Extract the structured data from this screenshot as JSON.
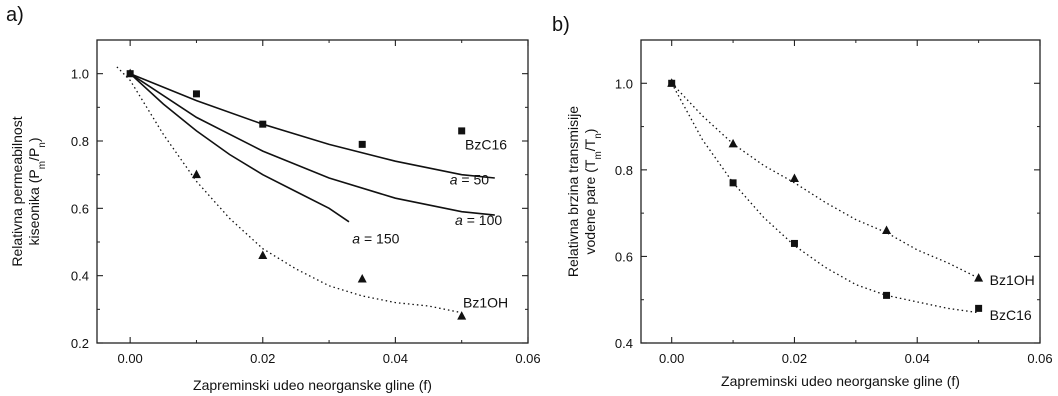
{
  "panels": {
    "a": "a)",
    "b": "b)"
  },
  "chart_data": [
    {
      "type": "scatter",
      "panel": "a)",
      "xlabel": "Zapreminski udeo neorganske gline (f)",
      "ylabel_line1": "Relativna permeabilnost",
      "ylabel_line2": "kiseonika (P",
      "ylabel_sub1": "m",
      "ylabel_mid": "/P",
      "ylabel_sub2": "n",
      "ylabel_end": ")",
      "xlim": [
        -0.005,
        0.06
      ],
      "ylim": [
        0.2,
        1.1
      ],
      "xticks": [
        "0.00",
        "0.02",
        "0.04",
        "0.06"
      ],
      "yticks": [
        "0.2",
        "0.4",
        "0.6",
        "0.8",
        "1.0"
      ],
      "grid": false,
      "series": [
        {
          "name": "BzC16",
          "marker": "square",
          "x": [
            0.0,
            0.01,
            0.02,
            0.035,
            0.05
          ],
          "y": [
            1.0,
            0.94,
            0.85,
            0.79,
            0.83
          ]
        },
        {
          "name": "Bz1OH",
          "marker": "triangle",
          "x": [
            0.0,
            0.01,
            0.02,
            0.035,
            0.05
          ],
          "y": [
            1.0,
            0.7,
            0.46,
            0.39,
            0.28
          ]
        }
      ],
      "curves": [
        {
          "label": "a = 50",
          "style": "solid",
          "x": [
            0.0,
            0.01,
            0.02,
            0.03,
            0.04,
            0.05,
            0.055
          ],
          "y": [
            1.0,
            0.92,
            0.85,
            0.79,
            0.74,
            0.7,
            0.69
          ]
        },
        {
          "label": "a = 100",
          "style": "solid",
          "x": [
            0.0,
            0.01,
            0.02,
            0.03,
            0.04,
            0.05,
            0.055
          ],
          "y": [
            1.0,
            0.87,
            0.77,
            0.69,
            0.63,
            0.59,
            0.58
          ]
        },
        {
          "label": "a = 150",
          "style": "solid",
          "x": [
            0.0,
            0.005,
            0.01,
            0.015,
            0.02,
            0.025,
            0.03,
            0.033
          ],
          "y": [
            1.0,
            0.91,
            0.83,
            0.76,
            0.7,
            0.65,
            0.6,
            0.56
          ]
        },
        {
          "label": "",
          "style": "dotted",
          "x": [
            -0.002,
            0.0,
            0.005,
            0.01,
            0.015,
            0.02,
            0.025,
            0.03,
            0.035,
            0.04,
            0.045,
            0.05
          ],
          "y": [
            1.02,
            0.98,
            0.82,
            0.68,
            0.57,
            0.48,
            0.42,
            0.37,
            0.34,
            0.32,
            0.31,
            0.29
          ]
        }
      ],
      "annotations": [
        {
          "text": "BzC16",
          "italic_prefix": "",
          "x": 0.0505,
          "y": 0.79
        },
        {
          "text": "Bz1OH",
          "italic_prefix": "",
          "x": 0.0502,
          "y": 0.32
        },
        {
          "text": " = 50",
          "italic_prefix": "a",
          "x": 0.0482,
          "y": 0.685
        },
        {
          "text": " = 100",
          "italic_prefix": "a",
          "x": 0.049,
          "y": 0.565
        },
        {
          "text": " = 150",
          "italic_prefix": "a",
          "x": 0.0335,
          "y": 0.51
        }
      ]
    },
    {
      "type": "scatter",
      "panel": "b)",
      "xlabel": "Zapreminski udeo neorganske gline (f)",
      "ylabel_line1": "Relativna brzina transmisije",
      "ylabel_line2": "vodene pare (T",
      "ylabel_sub1": "m",
      "ylabel_mid": "/T",
      "ylabel_sub2": "n",
      "ylabel_end": ")",
      "xlim": [
        -0.005,
        0.06
      ],
      "ylim": [
        0.4,
        1.1
      ],
      "xticks": [
        "0.00",
        "0.02",
        "0.04",
        "0.06"
      ],
      "yticks": [
        "0.4",
        "0.6",
        "0.8",
        "1.0"
      ],
      "grid": false,
      "series": [
        {
          "name": "Bz1OH",
          "marker": "triangle",
          "x": [
            0.0,
            0.01,
            0.02,
            0.035,
            0.05
          ],
          "y": [
            1.0,
            0.86,
            0.78,
            0.66,
            0.55
          ]
        },
        {
          "name": "BzC16",
          "marker": "square",
          "x": [
            0.0,
            0.01,
            0.02,
            0.035,
            0.05
          ],
          "y": [
            1.0,
            0.77,
            0.63,
            0.51,
            0.48
          ]
        }
      ],
      "curves": [
        {
          "label": "",
          "style": "dotted",
          "x": [
            0.0,
            0.005,
            0.01,
            0.015,
            0.02,
            0.025,
            0.03,
            0.035,
            0.04,
            0.045,
            0.05
          ],
          "y": [
            1.0,
            0.925,
            0.86,
            0.81,
            0.77,
            0.725,
            0.685,
            0.655,
            0.615,
            0.585,
            0.55
          ]
        },
        {
          "label": "",
          "style": "dotted",
          "x": [
            0.0,
            0.005,
            0.01,
            0.015,
            0.02,
            0.025,
            0.03,
            0.035,
            0.04,
            0.045,
            0.05
          ],
          "y": [
            1.0,
            0.87,
            0.77,
            0.69,
            0.625,
            0.575,
            0.535,
            0.51,
            0.495,
            0.48,
            0.47
          ]
        }
      ],
      "annotations": [
        {
          "text": "Bz1OH",
          "italic_prefix": "",
          "x": 0.0518,
          "y": 0.545
        },
        {
          "text": "BzC16",
          "italic_prefix": "",
          "x": 0.0518,
          "y": 0.465
        }
      ]
    }
  ]
}
